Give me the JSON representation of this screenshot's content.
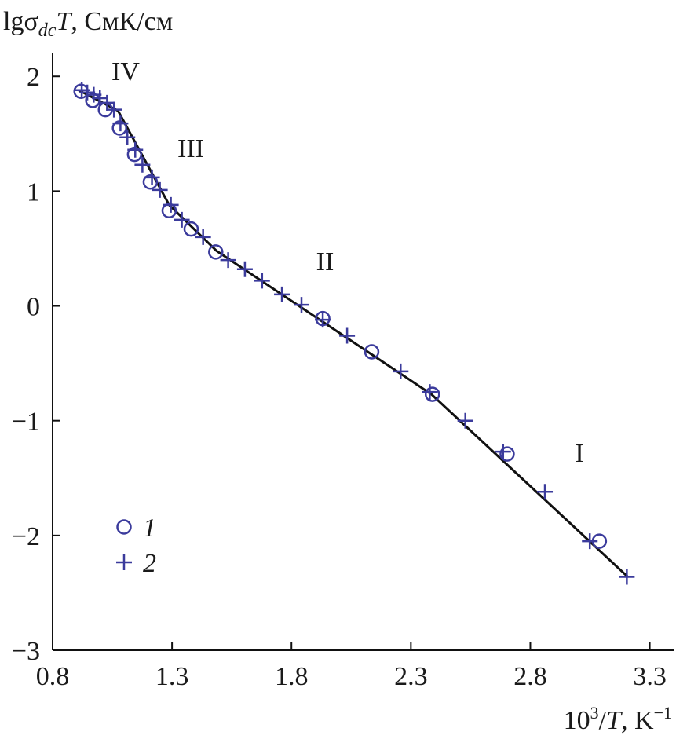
{
  "chart_data": {
    "type": "scatter",
    "ylabel_parts": [
      "lgσ",
      "dc",
      "T",
      ", СмК/см"
    ],
    "xlabel_parts": [
      "10",
      "3",
      "/",
      "T",
      ", K",
      "−1"
    ],
    "xlim": [
      0.8,
      3.4
    ],
    "ylim": [
      -3,
      2.2
    ],
    "xticks": [
      0.8,
      1.3,
      1.8,
      2.3,
      2.8,
      3.3
    ],
    "yticks": [
      {
        "value": -3,
        "label": "−3"
      },
      {
        "value": -2,
        "label": "−2"
      },
      {
        "value": -1,
        "label": "−1"
      },
      0,
      1,
      2
    ],
    "series": [
      {
        "name": "1",
        "marker": "circle",
        "color": "#3b3b9c",
        "x": [
          0.919,
          0.968,
          1.021,
          1.08,
          1.143,
          1.209,
          1.288,
          1.38,
          1.483,
          1.931,
          2.136,
          2.39,
          2.703,
          3.089
        ],
        "values": [
          1.87,
          1.79,
          1.71,
          1.55,
          1.32,
          1.08,
          0.83,
          0.67,
          0.47,
          -0.11,
          -0.4,
          -0.77,
          -1.29,
          -2.05
        ]
      },
      {
        "name": "2",
        "marker": "plus",
        "color": "#3b3b9c",
        "x": [
          0.922,
          0.945,
          0.972,
          0.998,
          1.028,
          1.057,
          1.084,
          1.113,
          1.146,
          1.176,
          1.216,
          1.249,
          1.295,
          1.341,
          1.43,
          1.535,
          1.605,
          1.677,
          1.76,
          1.842,
          1.931,
          2.033,
          2.257,
          2.379,
          2.528,
          2.686,
          2.861,
          3.049,
          3.204
        ],
        "values": [
          1.88,
          1.86,
          1.84,
          1.81,
          1.77,
          1.71,
          1.59,
          1.47,
          1.36,
          1.23,
          1.12,
          1.01,
          0.88,
          0.75,
          0.6,
          0.4,
          0.32,
          0.22,
          0.1,
          0.01,
          -0.12,
          -0.26,
          -0.57,
          -0.75,
          -1.0,
          -1.27,
          -1.62,
          -2.05,
          -2.36
        ]
      }
    ],
    "fit_line": {
      "color": "#111111",
      "x": [
        0.909,
        1.074,
        1.288,
        1.486,
        2.386,
        3.208
      ],
      "values": [
        1.88,
        1.7,
        0.88,
        0.48,
        -0.77,
        -2.36
      ]
    },
    "annotations": [
      "IV",
      "III",
      "II",
      "I"
    ]
  }
}
